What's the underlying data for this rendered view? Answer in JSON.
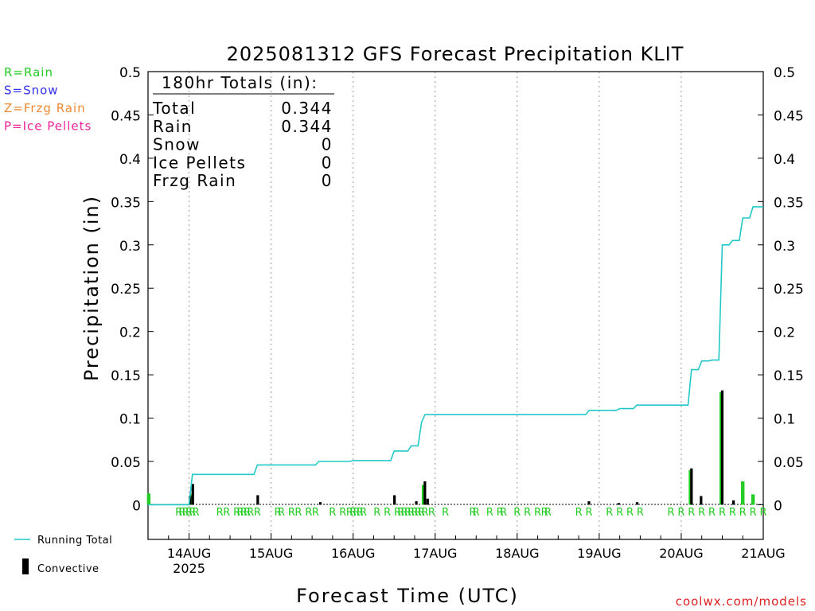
{
  "page": {
    "title": "2025081312 GFS Forecast Precipitation KLIT",
    "xlabel": "Forecast Time (UTC)",
    "ylabel": "Precipitation (in)",
    "credit": "coolwx.com/models"
  },
  "key": [
    {
      "text": "R=Rain",
      "color": "#22cc22"
    },
    {
      "text": "S=Snow",
      "color": "#3333ee"
    },
    {
      "text": "Z=Frzg Rain",
      "color": "#ee8833"
    },
    {
      "text": "P=Ice Pellets",
      "color": "#ee2299"
    }
  ],
  "totals": {
    "header": "180hr Totals (in):",
    "rows": [
      {
        "label": "Total",
        "value": "0.344"
      },
      {
        "label": "Rain",
        "value": "0.344"
      },
      {
        "label": "Snow",
        "value": "0"
      },
      {
        "label": "Ice Pellets",
        "value": "0"
      },
      {
        "label": "Frzg Rain",
        "value": "0"
      }
    ]
  },
  "legend": [
    {
      "label": "Running Total",
      "kind": "line",
      "color": "#22c8c8"
    },
    {
      "label": "Convective",
      "kind": "bar",
      "color": "#000000"
    }
  ],
  "colors": {
    "running_total": "#22c8c8",
    "convective": "#000000",
    "rain_bar": "#22cc22",
    "rain_marker": "#22cc22",
    "grid": "#999999"
  },
  "chart_data": {
    "type": "bar",
    "xlabel": "Forecast Time (UTC)",
    "ylabel": "Precipitation (in)",
    "x_unit": "forecast hour",
    "xlim": [
      0,
      180
    ],
    "ylim": [
      -0.04,
      0.5
    ],
    "yticks": [
      0,
      0.05,
      0.1,
      0.15,
      0.2,
      0.25,
      0.3,
      0.35,
      0.4,
      0.45,
      0.5
    ],
    "ytick_labels": [
      "0",
      "0.05",
      "0.1",
      "0.15",
      "0.2",
      "0.25",
      "0.3",
      "0.35",
      "0.4",
      "0.45",
      "0.5"
    ],
    "xticks": [
      {
        "x": 12,
        "label": "14AUG",
        "sublabel": "2025"
      },
      {
        "x": 36,
        "label": "15AUG",
        "sublabel": ""
      },
      {
        "x": 60,
        "label": "16AUG",
        "sublabel": ""
      },
      {
        "x": 84,
        "label": "17AUG",
        "sublabel": ""
      },
      {
        "x": 108,
        "label": "18AUG",
        "sublabel": ""
      },
      {
        "x": 132,
        "label": "19AUG",
        "sublabel": ""
      },
      {
        "x": 156,
        "label": "20AUG",
        "sublabel": ""
      },
      {
        "x": 180,
        "label": "21AUG",
        "sublabel": ""
      }
    ],
    "grid": "vertical dotted at day boundaries",
    "series": [
      {
        "name": "Running Total",
        "type": "step-line",
        "points": [
          [
            0,
            0
          ],
          [
            12,
            0
          ],
          [
            13,
            0.035
          ],
          [
            14,
            0.035
          ],
          [
            31,
            0.035
          ],
          [
            32,
            0.046
          ],
          [
            49,
            0.046
          ],
          [
            50,
            0.05
          ],
          [
            59,
            0.05
          ],
          [
            60,
            0.051
          ],
          [
            71,
            0.051
          ],
          [
            72,
            0.062
          ],
          [
            76,
            0.062
          ],
          [
            77,
            0.068
          ],
          [
            79,
            0.068
          ],
          [
            80,
            0.095
          ],
          [
            81,
            0.104
          ],
          [
            128,
            0.104
          ],
          [
            129,
            0.109
          ],
          [
            137,
            0.109
          ],
          [
            138,
            0.111
          ],
          [
            142,
            0.111
          ],
          [
            143,
            0.115
          ],
          [
            158,
            0.115
          ],
          [
            159,
            0.156
          ],
          [
            161,
            0.156
          ],
          [
            162,
            0.166
          ],
          [
            164,
            0.166
          ],
          [
            165,
            0.167
          ],
          [
            167,
            0.167
          ],
          [
            168,
            0.3
          ],
          [
            170,
            0.3
          ],
          [
            171,
            0.305
          ],
          [
            173,
            0.305
          ],
          [
            174,
            0.331
          ],
          [
            176,
            0.331
          ],
          [
            177,
            0.344
          ],
          [
            180,
            0.344
          ]
        ]
      },
      {
        "name": "Convective",
        "type": "bar",
        "points": [
          [
            12.3,
            0.01
          ],
          [
            13.1,
            0.024
          ],
          [
            32.1,
            0.011
          ],
          [
            50.4,
            0.003
          ],
          [
            72.1,
            0.011
          ],
          [
            78.5,
            0.004
          ],
          [
            81.0,
            0.027
          ],
          [
            81.8,
            0.007
          ],
          [
            129.0,
            0.004
          ],
          [
            137.7,
            0.002
          ],
          [
            143.1,
            0.003
          ],
          [
            159.0,
            0.042
          ],
          [
            161.8,
            0.01
          ],
          [
            168.0,
            0.132
          ],
          [
            171.3,
            0.005
          ]
        ]
      },
      {
        "type": "bar",
        "points": [
          [
            0.2,
            0.013
          ],
          [
            12.6,
            0.012
          ],
          [
            80.6,
            0.023
          ],
          [
            158.7,
            0.04
          ],
          [
            167.7,
            0.13
          ],
          [
            174.0,
            0.027
          ],
          [
            177.0,
            0.012
          ]
        ]
      }
    ],
    "precip_type_markers": {
      "symbol": "R",
      "x": [
        9,
        10,
        11,
        12,
        13,
        14,
        21,
        23,
        26,
        27,
        28,
        29,
        30,
        32,
        38,
        39,
        42,
        44,
        47,
        49,
        54,
        57,
        59,
        60,
        61,
        62,
        63,
        67,
        70,
        73,
        74,
        75,
        76,
        77,
        78,
        79,
        80,
        81,
        83,
        87,
        95,
        96,
        100,
        103,
        104,
        108,
        111,
        114,
        116,
        117,
        126,
        129,
        135,
        138,
        141,
        144,
        153,
        156,
        159,
        162,
        165,
        168,
        171,
        174,
        177,
        180
      ]
    }
  }
}
